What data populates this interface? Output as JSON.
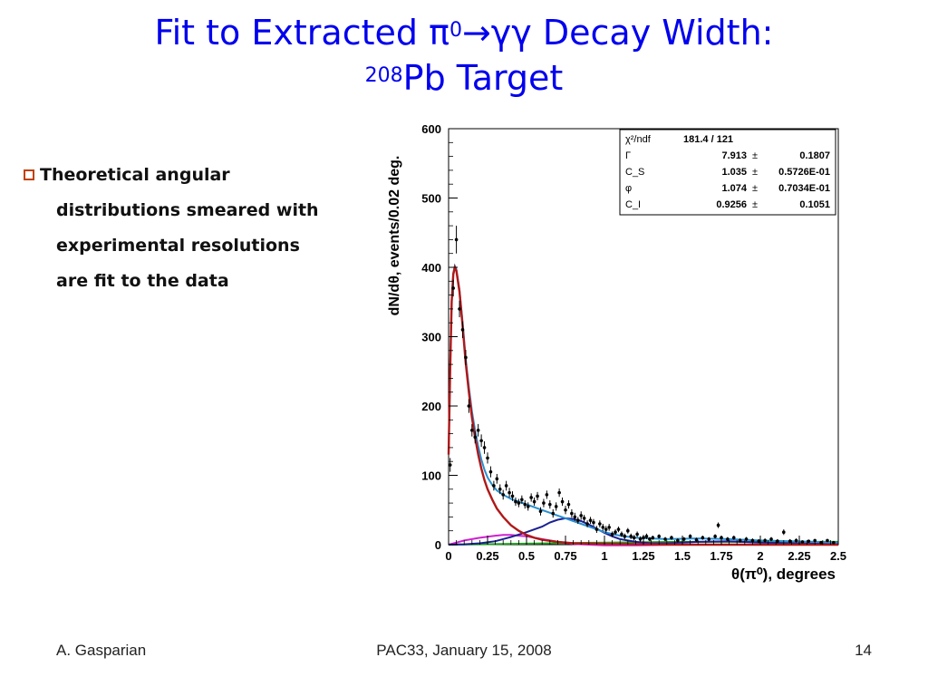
{
  "slide": {
    "title_line1_a": "Fit to Extracted ",
    "title_line1_pi": "π",
    "title_line1_sup": "0",
    "title_line1_arrow": "→γγ",
    "title_line1_b": " Decay Width:",
    "title_line2_sup": "208",
    "title_line2": "Pb Target",
    "bullet_lines": [
      "Theoretical angular",
      "distributions smeared with",
      "experimental resolutions",
      "are fit to the data"
    ],
    "footer_left": "A. Gasparian",
    "footer_center": "PAC33, January 15, 2008",
    "footer_right": "14"
  },
  "chart_data": {
    "type": "scatter",
    "ylabel": "dN/dθ, events/0.02 deg.",
    "xlabel": "θ(π⁰), degrees",
    "xlim": [
      0,
      2.5
    ],
    "ylim": [
      0,
      600
    ],
    "x_ticks": [
      "0",
      "0.25",
      "0.5",
      "0.75",
      "1",
      "1.25",
      "1.5",
      "1.75",
      "2",
      "2.25",
      "2.5"
    ],
    "x_tick_values": [
      0,
      0.25,
      0.5,
      0.75,
      1,
      1.25,
      1.5,
      1.75,
      2,
      2.25,
      2.5
    ],
    "y_ticks": [
      "0",
      "100",
      "200",
      "300",
      "400",
      "500",
      "600"
    ],
    "y_tick_values": [
      0,
      100,
      200,
      300,
      400,
      500,
      600
    ],
    "stats_box": [
      {
        "label": "χ²/ndf",
        "value": "181.4  /  121",
        "error": ""
      },
      {
        "label": "Γ",
        "value": "7.913",
        "error": "0.1807"
      },
      {
        "label": "C_S",
        "value": "1.035",
        "error": "0.5726E-01"
      },
      {
        "label": "φ",
        "value": "1.074",
        "error": "0.7034E-01"
      },
      {
        "label": "C_I",
        "value": "0.9256",
        "error": "0.1051"
      }
    ],
    "pm": "±",
    "colors": {
      "primakoff": "#b01818",
      "total": "#2a8fd0",
      "nuclear_coherent": "#1a2090",
      "interference": "#d020d0",
      "incoherent": "#20a020",
      "data": "#000000"
    },
    "data_points": [
      [
        0.01,
        115,
        10
      ],
      [
        0.03,
        370,
        12
      ],
      [
        0.05,
        440,
        20
      ],
      [
        0.07,
        340,
        12
      ],
      [
        0.09,
        310,
        12
      ],
      [
        0.11,
        270,
        11
      ],
      [
        0.13,
        200,
        10
      ],
      [
        0.15,
        165,
        9
      ],
      [
        0.17,
        155,
        9
      ],
      [
        0.19,
        165,
        9
      ],
      [
        0.21,
        150,
        9
      ],
      [
        0.23,
        140,
        9
      ],
      [
        0.25,
        125,
        8
      ],
      [
        0.27,
        105,
        8
      ],
      [
        0.29,
        85,
        7
      ],
      [
        0.31,
        95,
        7
      ],
      [
        0.33,
        80,
        7
      ],
      [
        0.35,
        72,
        7
      ],
      [
        0.37,
        85,
        7
      ],
      [
        0.39,
        75,
        7
      ],
      [
        0.41,
        70,
        7
      ],
      [
        0.43,
        62,
        6
      ],
      [
        0.45,
        60,
        6
      ],
      [
        0.47,
        65,
        6
      ],
      [
        0.49,
        58,
        6
      ],
      [
        0.51,
        55,
        6
      ],
      [
        0.53,
        68,
        6
      ],
      [
        0.55,
        62,
        6
      ],
      [
        0.57,
        70,
        6
      ],
      [
        0.59,
        48,
        6
      ],
      [
        0.61,
        60,
        6
      ],
      [
        0.63,
        72,
        6
      ],
      [
        0.65,
        58,
        6
      ],
      [
        0.67,
        45,
        6
      ],
      [
        0.69,
        55,
        6
      ],
      [
        0.71,
        75,
        6
      ],
      [
        0.73,
        62,
        6
      ],
      [
        0.75,
        50,
        6
      ],
      [
        0.77,
        58,
        6
      ],
      [
        0.79,
        45,
        6
      ],
      [
        0.81,
        40,
        6
      ],
      [
        0.83,
        35,
        5
      ],
      [
        0.85,
        42,
        6
      ],
      [
        0.87,
        38,
        5
      ],
      [
        0.89,
        30,
        5
      ],
      [
        0.91,
        35,
        5
      ],
      [
        0.93,
        32,
        5
      ],
      [
        0.95,
        22,
        5
      ],
      [
        0.97,
        30,
        5
      ],
      [
        0.99,
        25,
        5
      ],
      [
        1.01,
        22,
        5
      ],
      [
        1.03,
        25,
        5
      ],
      [
        1.05,
        15,
        4
      ],
      [
        1.07,
        18,
        4
      ],
      [
        1.09,
        22,
        4
      ],
      [
        1.11,
        15,
        4
      ],
      [
        1.13,
        12,
        4
      ],
      [
        1.15,
        20,
        4
      ],
      [
        1.17,
        12,
        4
      ],
      [
        1.19,
        10,
        4
      ],
      [
        1.21,
        15,
        4
      ],
      [
        1.23,
        8,
        4
      ],
      [
        1.25,
        10,
        4
      ],
      [
        1.27,
        12,
        4
      ],
      [
        1.29,
        8,
        3
      ],
      [
        1.31,
        10,
        3
      ],
      [
        1.35,
        12,
        3
      ],
      [
        1.39,
        8,
        3
      ],
      [
        1.43,
        10,
        3
      ],
      [
        1.47,
        6,
        3
      ],
      [
        1.51,
        8,
        3
      ],
      [
        1.55,
        12,
        3
      ],
      [
        1.59,
        7,
        3
      ],
      [
        1.63,
        10,
        3
      ],
      [
        1.67,
        8,
        3
      ],
      [
        1.71,
        12,
        3
      ],
      [
        1.73,
        28,
        4
      ],
      [
        1.75,
        10,
        3
      ],
      [
        1.79,
        8,
        3
      ],
      [
        1.83,
        10,
        3
      ],
      [
        1.87,
        6,
        3
      ],
      [
        1.91,
        8,
        3
      ],
      [
        1.95,
        6,
        3
      ],
      [
        1.99,
        5,
        3
      ],
      [
        2.03,
        6,
        3
      ],
      [
        2.07,
        8,
        3
      ],
      [
        2.11,
        5,
        3
      ],
      [
        2.15,
        18,
        4
      ],
      [
        2.19,
        5,
        3
      ],
      [
        2.23,
        6,
        3
      ],
      [
        2.27,
        4,
        2
      ],
      [
        2.31,
        5,
        2
      ],
      [
        2.35,
        6,
        2
      ],
      [
        2.39,
        3,
        2
      ],
      [
        2.43,
        6,
        2
      ],
      [
        2.47,
        3,
        2
      ]
    ],
    "curves": {
      "primakoff": [
        [
          0,
          130
        ],
        [
          0.01,
          250
        ],
        [
          0.02,
          350
        ],
        [
          0.03,
          390
        ],
        [
          0.04,
          400
        ],
        [
          0.05,
          395
        ],
        [
          0.07,
          365
        ],
        [
          0.09,
          315
        ],
        [
          0.11,
          262
        ],
        [
          0.13,
          220
        ],
        [
          0.15,
          183
        ],
        [
          0.17,
          155
        ],
        [
          0.19,
          130
        ],
        [
          0.21,
          110
        ],
        [
          0.23,
          93
        ],
        [
          0.25,
          80
        ],
        [
          0.28,
          65
        ],
        [
          0.31,
          52
        ],
        [
          0.35,
          40
        ],
        [
          0.4,
          28
        ],
        [
          0.45,
          20
        ],
        [
          0.5,
          14
        ],
        [
          0.55,
          10
        ],
        [
          0.6,
          7
        ],
        [
          0.7,
          4
        ],
        [
          0.8,
          2
        ],
        [
          1.0,
          1
        ],
        [
          1.5,
          0
        ],
        [
          2.5,
          0
        ]
      ],
      "total": [
        [
          0,
          132
        ],
        [
          0.01,
          252
        ],
        [
          0.02,
          352
        ],
        [
          0.03,
          392
        ],
        [
          0.04,
          402
        ],
        [
          0.05,
          397
        ],
        [
          0.07,
          368
        ],
        [
          0.09,
          320
        ],
        [
          0.11,
          268
        ],
        [
          0.13,
          227
        ],
        [
          0.15,
          192
        ],
        [
          0.17,
          165
        ],
        [
          0.19,
          142
        ],
        [
          0.21,
          123
        ],
        [
          0.23,
          108
        ],
        [
          0.25,
          97
        ],
        [
          0.28,
          86
        ],
        [
          0.31,
          78
        ],
        [
          0.35,
          72
        ],
        [
          0.4,
          66
        ],
        [
          0.45,
          62
        ],
        [
          0.5,
          58
        ],
        [
          0.55,
          54
        ],
        [
          0.6,
          50
        ],
        [
          0.65,
          46
        ],
        [
          0.7,
          42
        ],
        [
          0.75,
          38
        ],
        [
          0.8,
          34
        ],
        [
          0.85,
          30
        ],
        [
          0.9,
          26
        ],
        [
          1.0,
          18
        ],
        [
          1.1,
          13
        ],
        [
          1.2,
          10
        ],
        [
          1.4,
          8
        ],
        [
          1.6,
          9
        ],
        [
          1.8,
          8
        ],
        [
          2.0,
          6
        ],
        [
          2.2,
          5
        ],
        [
          2.5,
          3
        ]
      ],
      "nuclear_coherent": [
        [
          0,
          0
        ],
        [
          0.1,
          0.5
        ],
        [
          0.2,
          2
        ],
        [
          0.3,
          5
        ],
        [
          0.4,
          11
        ],
        [
          0.5,
          18
        ],
        [
          0.6,
          26
        ],
        [
          0.65,
          32
        ],
        [
          0.7,
          36
        ],
        [
          0.75,
          38
        ],
        [
          0.8,
          37
        ],
        [
          0.85,
          34
        ],
        [
          0.9,
          29
        ],
        [
          0.95,
          23
        ],
        [
          1.0,
          17
        ],
        [
          1.05,
          12
        ],
        [
          1.1,
          8
        ],
        [
          1.2,
          4
        ],
        [
          1.3,
          2
        ],
        [
          1.4,
          2
        ],
        [
          1.6,
          4
        ],
        [
          1.8,
          5
        ],
        [
          2.0,
          3
        ],
        [
          2.2,
          2
        ],
        [
          2.5,
          1
        ]
      ],
      "interference": [
        [
          0,
          0
        ],
        [
          0.05,
          3
        ],
        [
          0.1,
          6
        ],
        [
          0.2,
          10
        ],
        [
          0.3,
          13
        ],
        [
          0.35,
          14
        ],
        [
          0.4,
          14
        ],
        [
          0.45,
          13
        ],
        [
          0.5,
          12
        ],
        [
          0.6,
          8
        ],
        [
          0.7,
          4
        ],
        [
          0.8,
          1
        ],
        [
          0.9,
          0
        ],
        [
          1.0,
          -1
        ],
        [
          1.2,
          -1
        ],
        [
          1.5,
          0
        ],
        [
          2.5,
          0
        ]
      ],
      "incoherent": [
        [
          0,
          0
        ],
        [
          0.2,
          0.5
        ],
        [
          0.5,
          1.5
        ],
        [
          1.0,
          3
        ],
        [
          1.5,
          4
        ],
        [
          2.0,
          4
        ],
        [
          2.5,
          4
        ]
      ]
    }
  }
}
